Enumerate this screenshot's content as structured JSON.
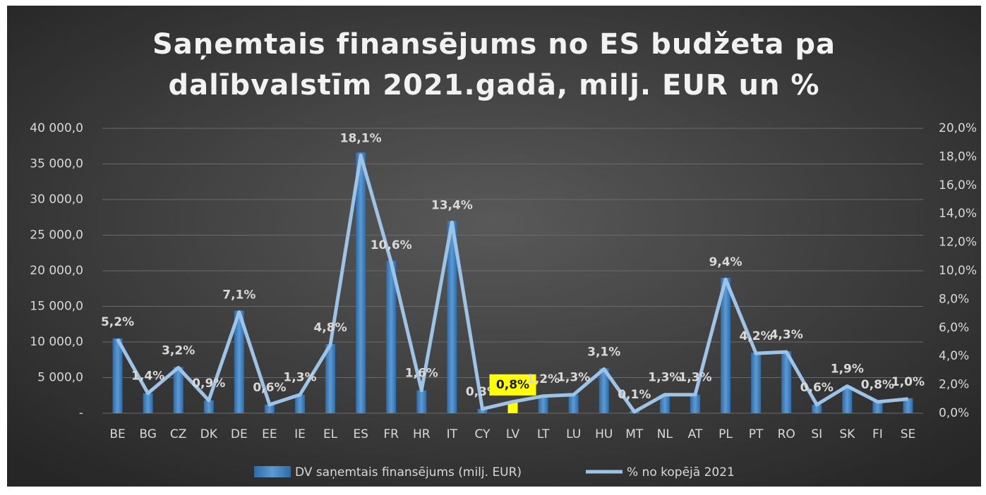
{
  "chart_data": {
    "type": "combo",
    "title": "Saņemtais finansējums no ES budžeta pa dalībvalstīm 2021.gadā, milj. EUR un %",
    "categories": [
      "BE",
      "BG",
      "CZ",
      "DK",
      "DE",
      "EE",
      "IE",
      "EL",
      "ES",
      "FR",
      "HR",
      "IT",
      "CY",
      "LV",
      "LT",
      "LU",
      "HU",
      "MT",
      "NL",
      "AT",
      "PL",
      "PT",
      "RO",
      "SI",
      "SK",
      "FI",
      "SE"
    ],
    "series": [
      {
        "name": "DV saņemtais finansējums (milj. EUR)",
        "type": "bar",
        "axis": "y",
        "color": "#3f7fc0",
        "values": [
          10500,
          2800,
          6500,
          1800,
          14400,
          1200,
          2600,
          9700,
          36600,
          21400,
          3200,
          27000,
          600,
          1600,
          2400,
          2600,
          6300,
          300,
          2600,
          2600,
          19000,
          8500,
          8700,
          1200,
          3800,
          1600,
          2100
        ]
      },
      {
        "name": "% no kopējā 2021",
        "type": "line",
        "axis": "y2",
        "color": "#9dc3e6",
        "values": [
          5.2,
          1.4,
          3.2,
          0.9,
          7.1,
          0.6,
          1.3,
          4.8,
          18.1,
          10.6,
          1.6,
          13.4,
          0.3,
          0.8,
          1.2,
          1.3,
          3.1,
          0.1,
          1.3,
          1.3,
          9.4,
          4.2,
          4.3,
          0.6,
          1.9,
          0.8,
          1.0
        ],
        "value_labels": [
          "5,2%",
          "1,4%",
          "3,2%",
          "0,9%",
          "7,1%",
          "0,6%",
          "1,3%",
          "4,8%",
          "18,1%",
          "10,6%",
          "1,6%",
          "13,4%",
          "0,3%",
          "0,8%",
          "1,2%",
          "1,3%",
          "3,1%",
          "0,1%",
          "1,3%",
          "1,3%",
          "9,4%",
          "4,2%",
          "4,3%",
          "0,6%",
          "1,9%",
          "0,8%",
          "1,0%"
        ]
      }
    ],
    "highlight_category": "LV",
    "highlight_color": "#ffff00",
    "ylim": [
      0,
      40000
    ],
    "yticks": [
      {
        "value": 0,
        "label": "-"
      },
      {
        "value": 5000,
        "label": "5 000,0"
      },
      {
        "value": 10000,
        "label": "10 000,0"
      },
      {
        "value": 15000,
        "label": "15 000,0"
      },
      {
        "value": 20000,
        "label": "20 000,0"
      },
      {
        "value": 25000,
        "label": "25 000,0"
      },
      {
        "value": 30000,
        "label": "30 000,0"
      },
      {
        "value": 35000,
        "label": "35 000,0"
      },
      {
        "value": 40000,
        "label": "40 000,0"
      }
    ],
    "y2lim": [
      0,
      20
    ],
    "y2ticks": [
      {
        "value": 0,
        "label": "0,0%"
      },
      {
        "value": 2,
        "label": "2,0%"
      },
      {
        "value": 4,
        "label": "4,0%"
      },
      {
        "value": 6,
        "label": "6,0%"
      },
      {
        "value": 8,
        "label": "8,0%"
      },
      {
        "value": 10,
        "label": "10,0%"
      },
      {
        "value": 12,
        "label": "12,0%"
      },
      {
        "value": 14,
        "label": "14,0%"
      },
      {
        "value": 16,
        "label": "16,0%"
      },
      {
        "value": 18,
        "label": "18,0%"
      },
      {
        "value": 20,
        "label": "20,0%"
      }
    ],
    "grid": true,
    "legend": "bottom"
  }
}
